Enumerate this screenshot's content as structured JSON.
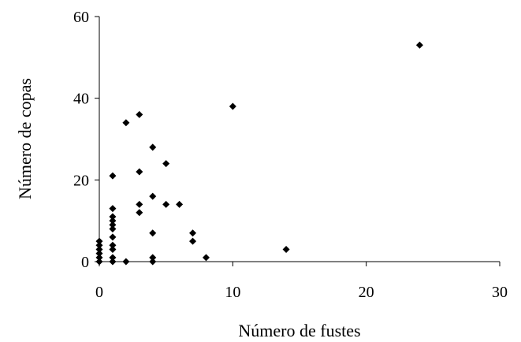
{
  "chart_data": {
    "type": "scatter",
    "title": "",
    "xlabel": "Número de fustes",
    "ylabel": "Número de copas",
    "xlim": [
      0,
      30
    ],
    "ylim": [
      0,
      60
    ],
    "x_ticks": [
      0,
      10,
      20,
      30
    ],
    "y_ticks": [
      0,
      20,
      40,
      60
    ],
    "x_tick_labels": [
      "0",
      "10",
      "20",
      "30"
    ],
    "y_tick_labels": [
      "0",
      "20",
      "40",
      "60"
    ],
    "grid": false,
    "legend": "none",
    "marker": "diamond",
    "marker_color": "#000000",
    "series": [
      {
        "points": [
          [
            0,
            0
          ],
          [
            0,
            1
          ],
          [
            0,
            2
          ],
          [
            0,
            3
          ],
          [
            0,
            4
          ],
          [
            0,
            5
          ],
          [
            1,
            0
          ],
          [
            1,
            1
          ],
          [
            1,
            3
          ],
          [
            1,
            4
          ],
          [
            1,
            6
          ],
          [
            1,
            8
          ],
          [
            1,
            9
          ],
          [
            1,
            10
          ],
          [
            1,
            11
          ],
          [
            1,
            13
          ],
          [
            1,
            21
          ],
          [
            2,
            0
          ],
          [
            2,
            34
          ],
          [
            3,
            12
          ],
          [
            3,
            14
          ],
          [
            3,
            22
          ],
          [
            3,
            36
          ],
          [
            4,
            0
          ],
          [
            4,
            1
          ],
          [
            4,
            7
          ],
          [
            4,
            16
          ],
          [
            4,
            28
          ],
          [
            5,
            14
          ],
          [
            5,
            24
          ],
          [
            6,
            14
          ],
          [
            7,
            5
          ],
          [
            7,
            7
          ],
          [
            8,
            1
          ],
          [
            10,
            38
          ],
          [
            14,
            3
          ],
          [
            24,
            53
          ]
        ]
      }
    ]
  }
}
